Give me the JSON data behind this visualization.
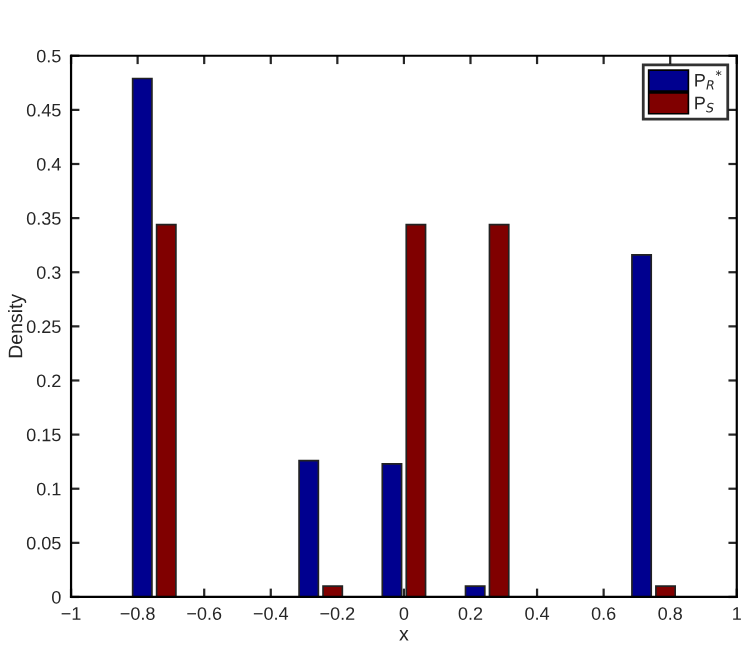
{
  "chart_data": {
    "type": "bar",
    "xlabel": "x",
    "ylabel": "Density",
    "series": [
      {
        "name": "P$_{R}$$^{*}$",
        "color": "#00008f",
        "x": [
          -0.786,
          -0.286,
          -0.036,
          0.214,
          0.714
        ],
        "values": [
          0.479,
          0.126,
          0.123,
          0.01,
          0.316
        ]
      },
      {
        "name": "P$_{S}$",
        "color": "#800000",
        "x": [
          -0.714,
          -0.214,
          0.036,
          0.286,
          0.786
        ],
        "values": [
          0.344,
          0.01,
          0.344,
          0.344,
          0.01
        ]
      }
    ],
    "xlim": [
      -1,
      1
    ],
    "xticks": [
      {
        "value": -1,
        "label": "−1"
      },
      {
        "value": -0.8,
        "label": "−0.8"
      },
      {
        "value": -0.6,
        "label": "−0.6"
      },
      {
        "value": -0.4,
        "label": "−0.4"
      },
      {
        "value": -0.2,
        "label": "−0.2"
      },
      0,
      0.2,
      0.4,
      0.6,
      0.8,
      1
    ],
    "ylim": [
      0,
      0.5
    ],
    "yticks": [
      0,
      0.05,
      0.1,
      0.15,
      0.2,
      0.25,
      0.3,
      0.35,
      0.4,
      0.45,
      0.5
    ],
    "legend": "top right",
    "grid": false
  }
}
